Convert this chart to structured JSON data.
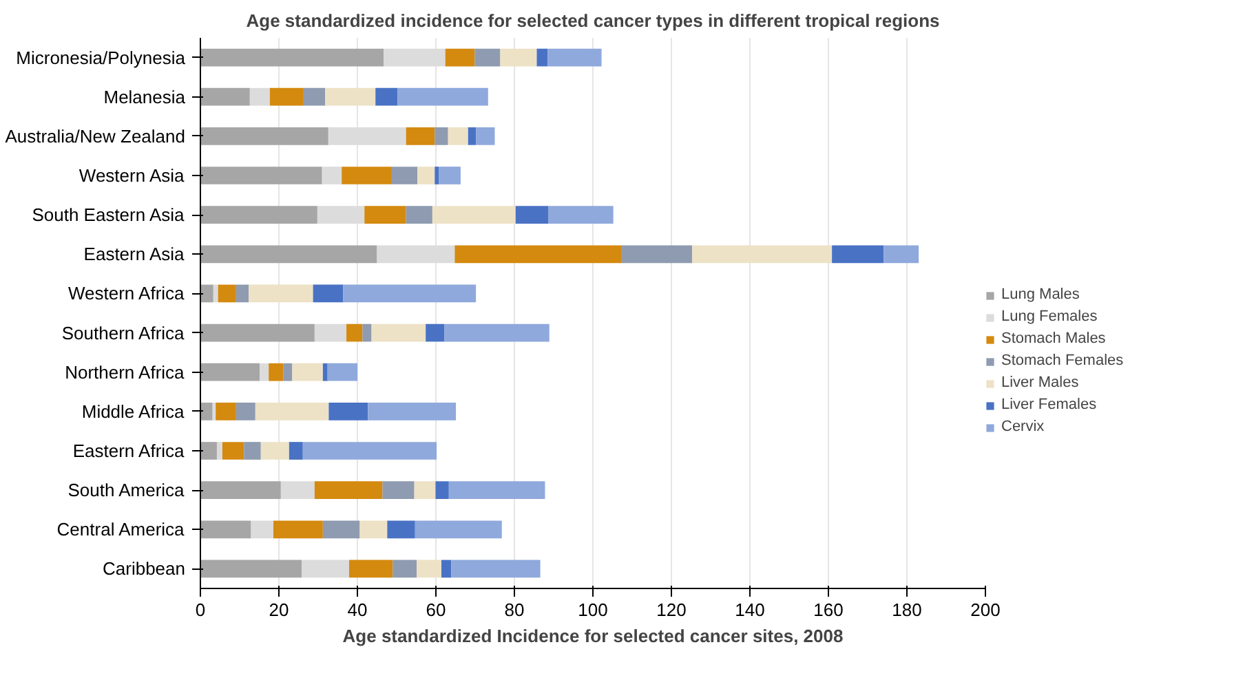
{
  "chart_data": {
    "type": "bar",
    "orientation": "horizontal",
    "stacked": true,
    "title": "Age standardized incidence for selected cancer types in different tropical regions",
    "xlabel": "Age standardized Incidence for selected cancer sites, 2008",
    "categories": [
      "Micronesia/Polynesia",
      "Melanesia",
      "Australia/New Zealand",
      "Western Asia",
      "South Eastern Asia",
      "Eastern Asia",
      "Western Africa",
      "Southern Africa",
      "Northern Africa",
      "Middle Africa",
      "Eastern Africa",
      "South America",
      "Central America",
      "Caribbean"
    ],
    "series": [
      {
        "name": "Lung Males",
        "color": "#a6a6a6",
        "values": [
          46.7,
          12.6,
          32.6,
          31.0,
          29.8,
          45.0,
          3.3,
          29.1,
          15.1,
          3.1,
          4.2,
          20.5,
          12.9,
          25.8
        ]
      },
      {
        "name": "Lung Females",
        "color": "#dcdcdc",
        "values": [
          15.7,
          5.1,
          19.8,
          5.0,
          12.0,
          19.8,
          1.2,
          8.1,
          2.3,
          0.8,
          1.4,
          8.6,
          5.7,
          12.1
        ]
      },
      {
        "name": "Stomach Males",
        "color": "#d4890f",
        "values": [
          7.5,
          8.6,
          7.3,
          12.6,
          10.6,
          42.4,
          4.6,
          4.1,
          3.7,
          5.2,
          5.5,
          17.3,
          12.6,
          11.1
        ]
      },
      {
        "name": "Stomach Females",
        "color": "#8e9bb0",
        "values": [
          6.5,
          5.5,
          3.4,
          6.7,
          6.7,
          18.1,
          3.2,
          2.3,
          2.3,
          4.9,
          4.3,
          8.1,
          9.4,
          6.1
        ]
      },
      {
        "name": "Liver Males",
        "color": "#ede2c6",
        "values": [
          9.3,
          12.8,
          5.1,
          4.4,
          21.2,
          35.6,
          16.4,
          13.8,
          7.8,
          18.7,
          7.2,
          5.4,
          7.0,
          6.3
        ]
      },
      {
        "name": "Liver Females",
        "color": "#4a72c4",
        "values": [
          2.8,
          5.6,
          2.0,
          1.1,
          8.3,
          13.2,
          7.7,
          4.8,
          1.2,
          10.0,
          3.5,
          3.4,
          7.1,
          2.5
        ]
      },
      {
        "name": "Cervix",
        "color": "#8fa9dc",
        "values": [
          13.7,
          23.1,
          4.8,
          5.5,
          16.6,
          8.9,
          33.8,
          26.7,
          7.6,
          22.4,
          34.1,
          24.5,
          22.1,
          22.7
        ]
      }
    ],
    "xlim": [
      0,
      200
    ],
    "xticks": [
      0,
      20,
      40,
      60,
      80,
      100,
      120,
      140,
      160,
      180,
      200
    ],
    "grid": "x",
    "legend": "right"
  }
}
